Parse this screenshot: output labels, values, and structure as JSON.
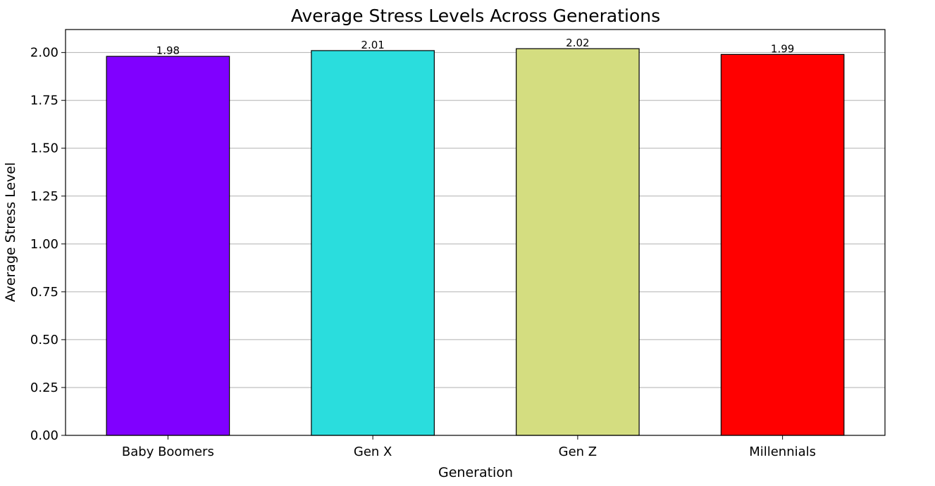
{
  "chart_data": {
    "type": "bar",
    "title": "Average Stress Levels Across Generations",
    "xlabel": "Generation",
    "ylabel": "Average Stress Level",
    "categories": [
      "Baby Boomers",
      "Gen X",
      "Gen Z",
      "Millennials"
    ],
    "values": [
      1.98,
      2.01,
      2.02,
      1.99
    ],
    "value_labels": [
      "1.98",
      "2.01",
      "2.02",
      "1.99"
    ],
    "colors": [
      "#8000ff",
      "#2adddd",
      "#d4dd80",
      "#ff0000"
    ],
    "ylim": [
      0,
      2.12
    ],
    "yticks": [
      0,
      0.25,
      0.5,
      0.75,
      1.0,
      1.25,
      1.5,
      1.75,
      2.0
    ],
    "ytick_labels": [
      "0.00",
      "0.25",
      "0.50",
      "0.75",
      "1.00",
      "1.25",
      "1.50",
      "1.75",
      "2.00"
    ],
    "grid": "horizontal",
    "legend": "none"
  }
}
